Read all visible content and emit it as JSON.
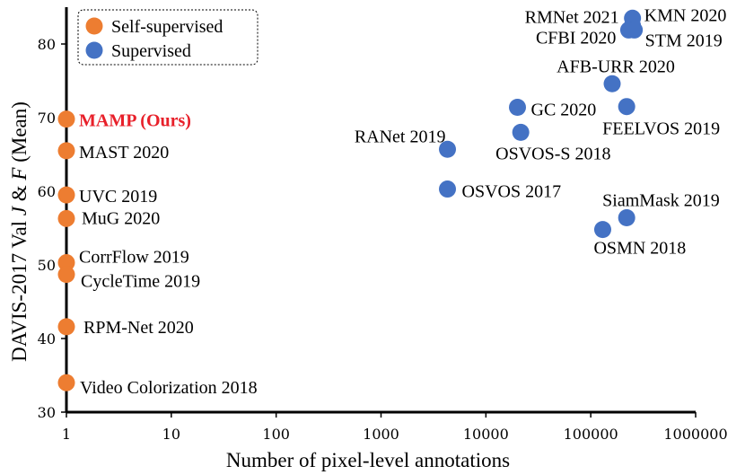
{
  "chart_data": {
    "type": "scatter",
    "xscale": "log",
    "xlim": [
      1,
      1000000
    ],
    "ylim": [
      30,
      85
    ],
    "xlabel": "Number of pixel-level annotations",
    "ylabel_parts": [
      "DAVIS-2017 Val ",
      "J",
      " & ",
      "F",
      " (Mean)"
    ],
    "xticks": [
      {
        "value": 1,
        "label": "1"
      },
      {
        "value": 10,
        "label": "10"
      },
      {
        "value": 100,
        "label": "100"
      },
      {
        "value": 1000,
        "label": "1000"
      },
      {
        "value": 10000,
        "label": "10000"
      },
      {
        "value": 100000,
        "label": "100000"
      },
      {
        "value": 1000000,
        "label": "1000000"
      }
    ],
    "yticks": [
      {
        "value": 30,
        "label": "30"
      },
      {
        "value": 40,
        "label": "40"
      },
      {
        "value": 50,
        "label": "50"
      },
      {
        "value": 60,
        "label": "60"
      },
      {
        "value": 70,
        "label": "70"
      },
      {
        "value": 80,
        "label": "80"
      }
    ],
    "legend": [
      {
        "name": "Self-supervised",
        "color": "#ed7d31"
      },
      {
        "name": "Supervised",
        "color": "#4472c4"
      }
    ],
    "series": [
      {
        "name": "Self-supervised",
        "color": "#ed7d31",
        "points": [
          {
            "x": 1,
            "y": 69.8,
            "label": "MAMP (Ours)",
            "highlight": true
          },
          {
            "x": 1,
            "y": 65.5,
            "label": "MAST 2020"
          },
          {
            "x": 1,
            "y": 59.5,
            "label": "UVC 2019"
          },
          {
            "x": 1,
            "y": 56.3,
            "label": "MuG 2020"
          },
          {
            "x": 1,
            "y": 50.3,
            "label": "CorrFlow 2019"
          },
          {
            "x": 1,
            "y": 48.7,
            "label": "CycleTime 2019"
          },
          {
            "x": 1,
            "y": 41.6,
            "label": "RPM-Net 2020"
          },
          {
            "x": 1,
            "y": 34.0,
            "label": "Video Colorization 2018"
          }
        ]
      },
      {
        "name": "Supervised",
        "color": "#4472c4",
        "points": [
          {
            "x": 250000,
            "y": 83.5,
            "label": "RMNet 2021"
          },
          {
            "x": 250000,
            "y": 82.5,
            "label": "KMN 2020"
          },
          {
            "x": 230000,
            "y": 81.9,
            "label": "CFBI 2020"
          },
          {
            "x": 260000,
            "y": 81.9,
            "label": "STM 2019"
          },
          {
            "x": 160000,
            "y": 74.6,
            "label": "AFB-URR 2020"
          },
          {
            "x": 20000,
            "y": 71.4,
            "label": "GC 2020"
          },
          {
            "x": 220000,
            "y": 71.5,
            "label": "FEELVOS 2019"
          },
          {
            "x": 21500,
            "y": 68.0,
            "label": "OSVOS-S 2018"
          },
          {
            "x": 4300,
            "y": 65.7,
            "label": "RANet 2019"
          },
          {
            "x": 4300,
            "y": 60.3,
            "label": "OSVOS 2017"
          },
          {
            "x": 220000,
            "y": 56.4,
            "label": "SiamMask 2019"
          },
          {
            "x": 130000,
            "y": 54.8,
            "label": "OSMN 2018"
          }
        ]
      }
    ]
  }
}
